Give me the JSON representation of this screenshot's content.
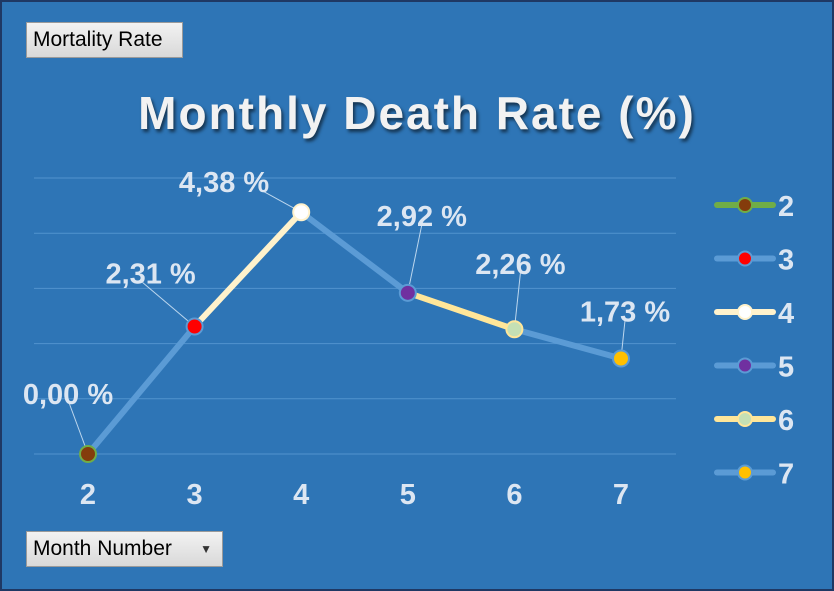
{
  "buttons": {
    "value_field": "Mortality Rate",
    "axis_field": "Month Number"
  },
  "chart_data": {
    "type": "line",
    "title": "Monthly Death Rate (%)",
    "xlabel": "",
    "ylabel": "",
    "categories": [
      "2",
      "3",
      "4",
      "5",
      "6",
      "7"
    ],
    "values": [
      0.0,
      2.31,
      4.38,
      2.92,
      2.26,
      1.73
    ],
    "data_labels": [
      "0,00 %",
      "2,31 %",
      "4,38 %",
      "2,92 %",
      "2,26 %",
      "1,73 %"
    ],
    "ylim": [
      0,
      5
    ],
    "grid": true,
    "legend_position": "right",
    "legend": [
      {
        "label": "2",
        "line_color": "#70ad47",
        "marker_color": "#843c0c"
      },
      {
        "label": "3",
        "line_color": "#5b9bd5",
        "marker_color": "#ff0000"
      },
      {
        "label": "4",
        "line_color": "#fff2cc",
        "marker_color": "#ffffff"
      },
      {
        "label": "5",
        "line_color": "#5b9bd5",
        "marker_color": "#7030a0"
      },
      {
        "label": "6",
        "line_color": "#ffe699",
        "marker_color": "#c5e0b4"
      },
      {
        "label": "7",
        "line_color": "#5b9bd5",
        "marker_color": "#ffc000"
      }
    ],
    "segment_colors": [
      "#5b9bd5",
      "#fff2cc",
      "#5b9bd5",
      "#ffe699",
      "#5b9bd5"
    ],
    "colors": {
      "background": "#2e75b6",
      "gridline": "#5b9bd5",
      "text": "#dce6f2"
    }
  }
}
